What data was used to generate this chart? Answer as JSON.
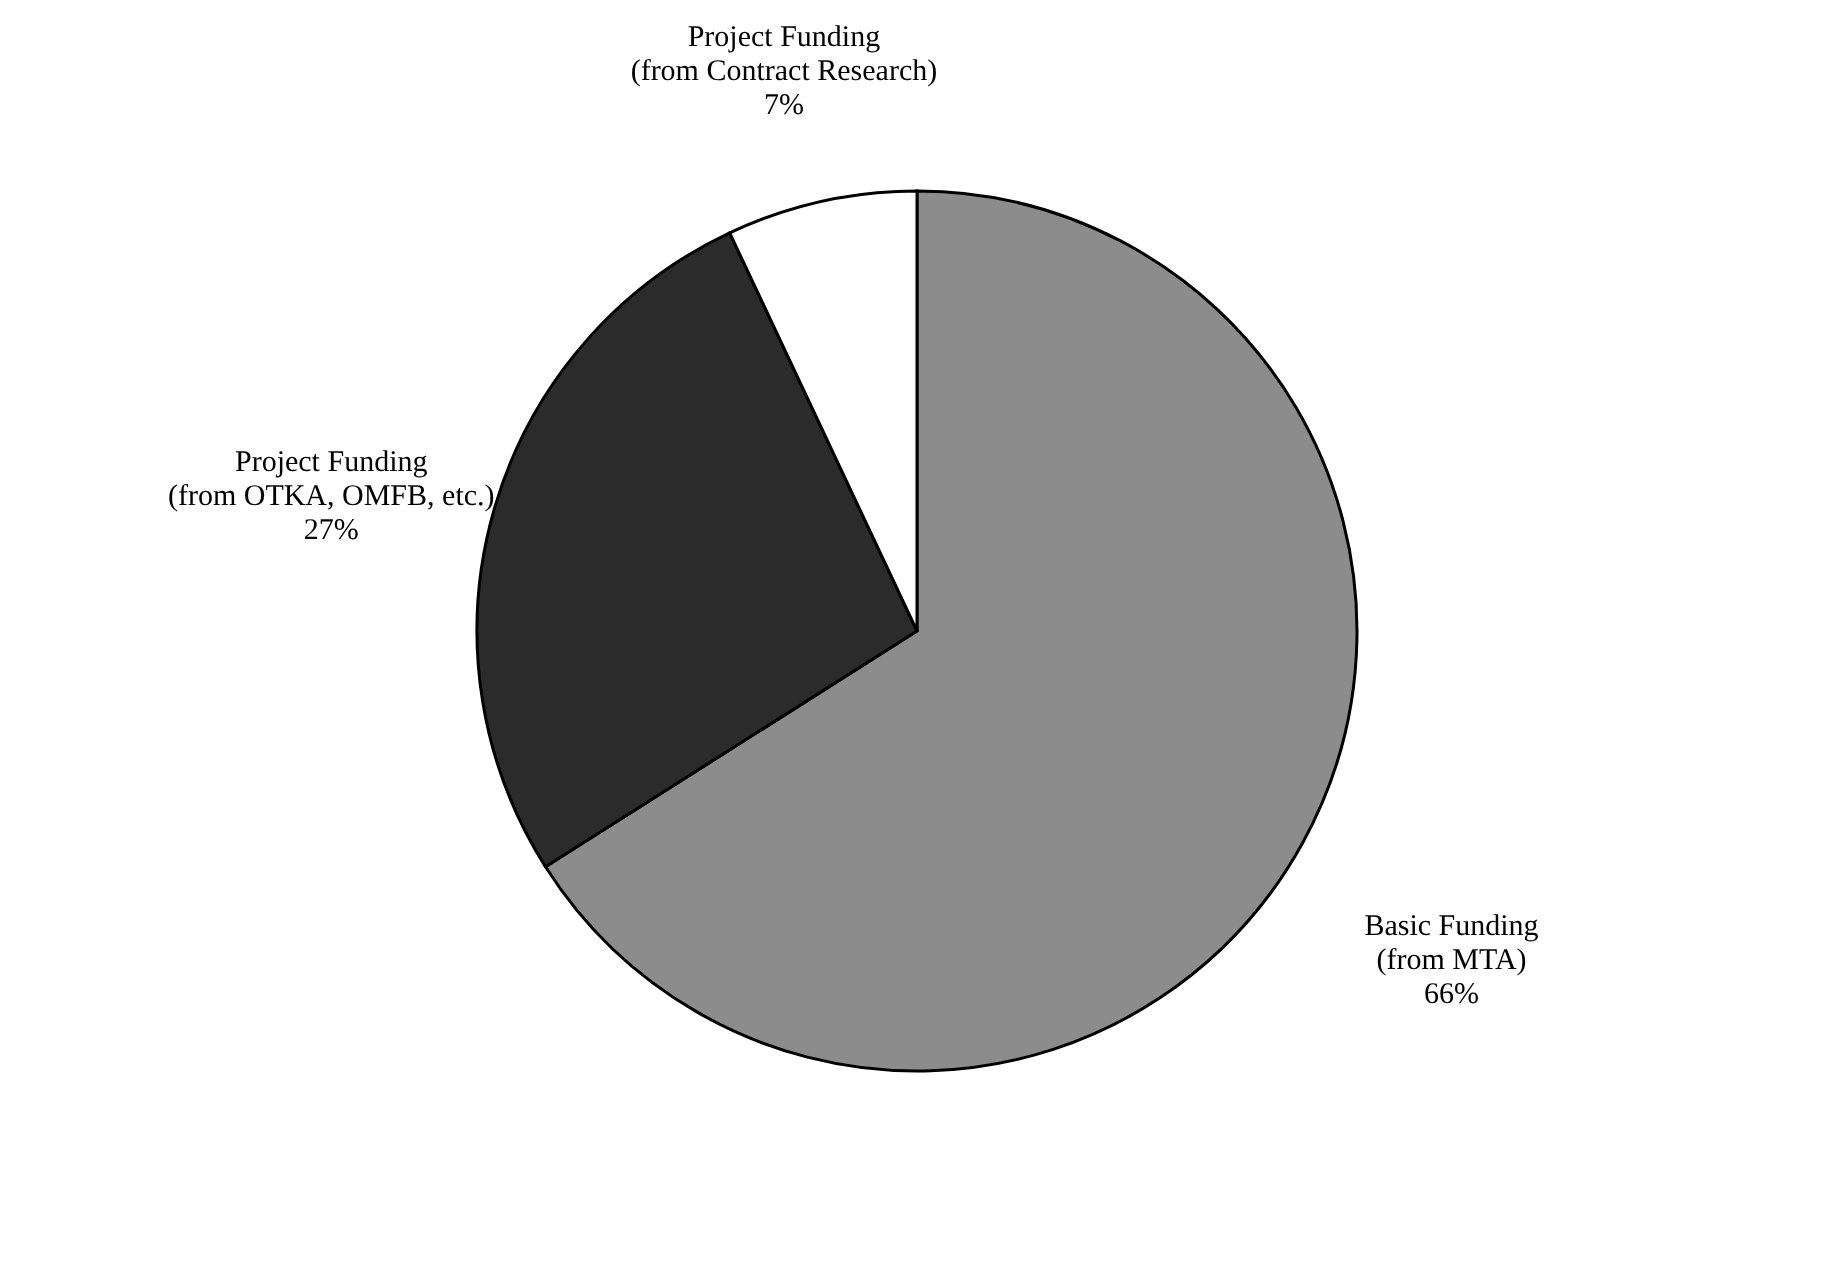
{
  "chart_data": {
    "type": "pie",
    "categories": [
      "Basic Funding\n(from MTA)",
      "Project Funding\n(from OTKA, OMFB, etc.)",
      "Project Funding\n(from Contract Research)"
    ],
    "values": [
      66,
      27,
      7
    ],
    "value_labels": [
      "66%",
      "27%",
      "7%"
    ],
    "colors": [
      "#8c8c8c",
      "#2b2b2b",
      "#ffffff"
    ],
    "legend": false
  }
}
